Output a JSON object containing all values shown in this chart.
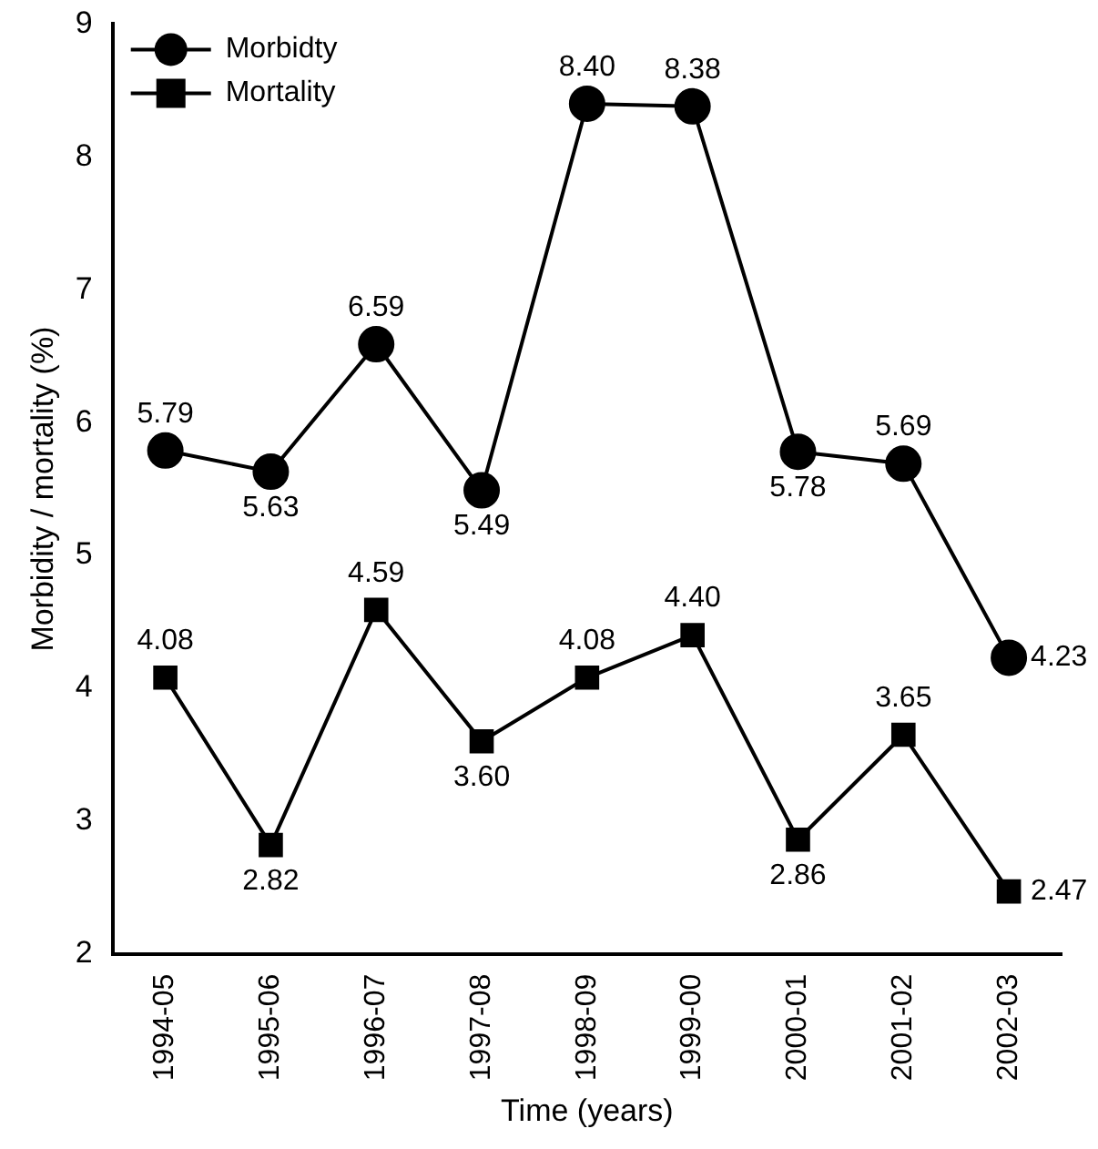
{
  "chart_data": {
    "type": "line",
    "xlabel": "Time (years)",
    "ylabel": "Morbidity / mortality (%)",
    "categories": [
      "1994-05",
      "1995-06",
      "1996-07",
      "1997-08",
      "1998-09",
      "1999-00",
      "2000-01",
      "2001-02",
      "2002-03"
    ],
    "series": [
      {
        "name": "Morbidty",
        "color": "#000000",
        "marker": "circle",
        "values": [
          5.79,
          5.63,
          6.59,
          5.49,
          8.4,
          8.38,
          5.78,
          5.69,
          4.23
        ],
        "value_labels": [
          "5.79",
          "5.63",
          "6.59",
          "5.49",
          "8.40",
          "8.38",
          "5.78",
          "5.69",
          "4.23"
        ]
      },
      {
        "name": "Mortality",
        "color": "#000000",
        "marker": "square",
        "values": [
          4.08,
          2.82,
          4.59,
          3.6,
          4.08,
          4.4,
          2.86,
          3.65,
          2.47
        ],
        "value_labels": [
          "4.08",
          "2.82",
          "4.59",
          "3.60",
          "4.08",
          "4.40",
          "2.86",
          "3.65",
          "2.47"
        ]
      }
    ],
    "ylim": [
      2,
      9
    ],
    "yticks": [
      2,
      3,
      4,
      5,
      6,
      7,
      8,
      9
    ],
    "grid": false,
    "legend": "top left"
  }
}
